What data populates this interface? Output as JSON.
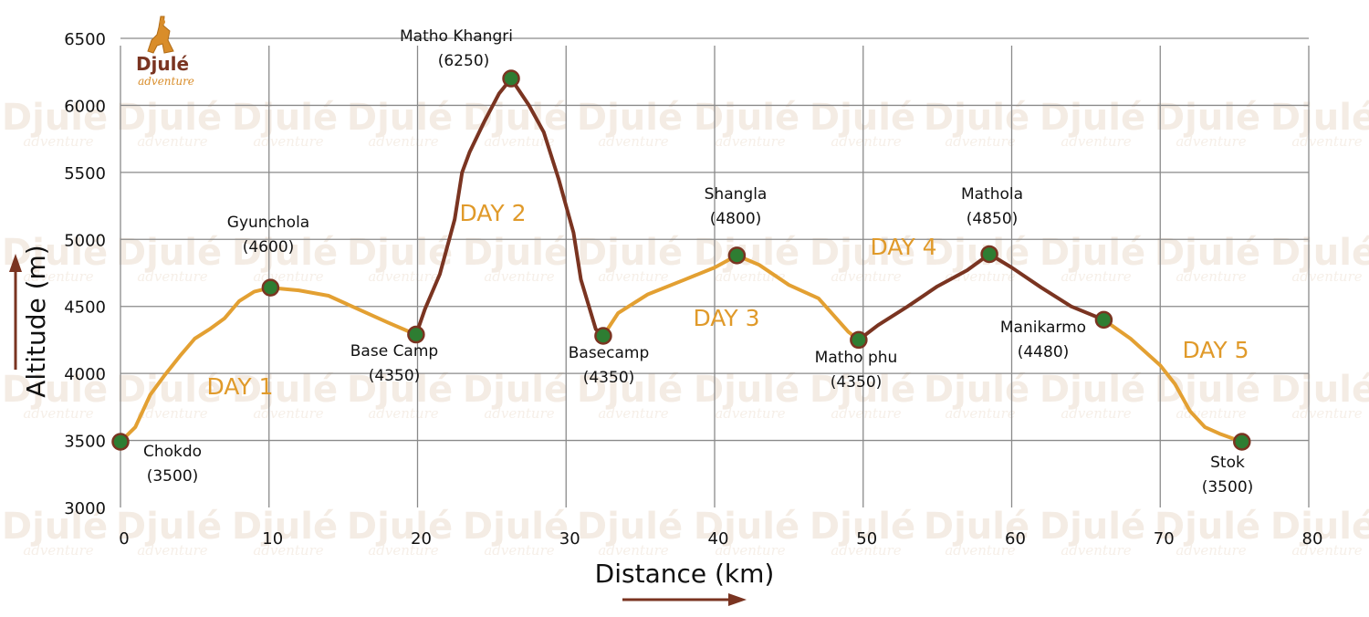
{
  "logo": {
    "name": "Djulé",
    "tagline": "adventure"
  },
  "colors": {
    "light_segment": "#e3a032",
    "dark_segment": "#7a3421",
    "marker_fill": "#2e7d32",
    "marker_stroke": "#7a3421",
    "day_label": "#e09a2a",
    "grid": "#8a8a8a",
    "arrow": "#7a3421",
    "watermark": "#f4ece4"
  },
  "chart_data": {
    "type": "line",
    "title": "",
    "xlabel": "Distance (km)",
    "ylabel": "Altitude (m)",
    "xlim": [
      0,
      80
    ],
    "ylim": [
      3000,
      6500
    ],
    "x_ticks": [
      0,
      10,
      20,
      30,
      40,
      50,
      60,
      70,
      80
    ],
    "y_ticks": [
      3000,
      3500,
      4000,
      4500,
      5000,
      5500,
      6000,
      6500
    ],
    "grid": true,
    "waypoints": [
      {
        "name": "Chokdo",
        "elevation_label": "(3500)",
        "x": 0,
        "y": 3490
      },
      {
        "name": "Gyunchola",
        "elevation_label": "(4600)",
        "x": 10.1,
        "y": 4640
      },
      {
        "name": "Base Camp",
        "elevation_label": "(4350)",
        "x": 19.9,
        "y": 4290
      },
      {
        "name": "Matho Khangri",
        "elevation_label": "(6250)",
        "x": 26.3,
        "y": 6200
      },
      {
        "name": "Basecamp",
        "elevation_label": "(4350)",
        "x": 32.5,
        "y": 4280
      },
      {
        "name": "Shangla",
        "elevation_label": "(4800)",
        "x": 41.5,
        "y": 4880
      },
      {
        "name": "Matho phu",
        "elevation_label": "(4350)",
        "x": 49.7,
        "y": 4250
      },
      {
        "name": "Mathola",
        "elevation_label": "(4850)",
        "x": 58.5,
        "y": 4890
      },
      {
        "name": "Manikarmo",
        "elevation_label": "(4480)",
        "x": 66.2,
        "y": 4400
      },
      {
        "name": "Stok",
        "elevation_label": "(3500)",
        "x": 75.5,
        "y": 3490
      }
    ],
    "day_labels": [
      "DAY 1",
      "DAY 2",
      "DAY 3",
      "DAY 4",
      "DAY 5"
    ],
    "series": [
      {
        "style": "light",
        "x": [
          0,
          1,
          2,
          3,
          4,
          5,
          6,
          7,
          8,
          9,
          10.1
        ],
        "y": [
          3490,
          3600,
          3840,
          3990,
          4130,
          4260,
          4330,
          4410,
          4540,
          4610,
          4640
        ]
      },
      {
        "style": "light",
        "x": [
          10.1,
          12,
          14,
          16,
          18,
          19.9
        ],
        "y": [
          4640,
          4620,
          4580,
          4480,
          4380,
          4290
        ]
      },
      {
        "style": "dark",
        "x": [
          19.9,
          20.5,
          21.5,
          22.5,
          23,
          23.5,
          24.5,
          25.5,
          26.3
        ],
        "y": [
          4290,
          4480,
          4740,
          5150,
          5500,
          5650,
          5880,
          6090,
          6200
        ]
      },
      {
        "style": "dark",
        "x": [
          26.3,
          27.5,
          28.5,
          29.5,
          30.5,
          31,
          32,
          32.5
        ],
        "y": [
          6200,
          6000,
          5800,
          5450,
          5050,
          4700,
          4330,
          4280
        ]
      },
      {
        "style": "light",
        "x": [
          32.5,
          33.5,
          35.5,
          38,
          40,
          41.5
        ],
        "y": [
          4280,
          4450,
          4590,
          4700,
          4790,
          4880
        ]
      },
      {
        "style": "light",
        "x": [
          41.5,
          43,
          45,
          47,
          49,
          49.7
        ],
        "y": [
          4880,
          4810,
          4660,
          4560,
          4310,
          4250
        ]
      },
      {
        "style": "dark",
        "x": [
          49.7,
          51,
          53,
          55,
          57,
          58.5
        ],
        "y": [
          4250,
          4360,
          4500,
          4650,
          4770,
          4890
        ]
      },
      {
        "style": "dark",
        "x": [
          58.5,
          60,
          62,
          64,
          66.2
        ],
        "y": [
          4890,
          4790,
          4640,
          4500,
          4400
        ]
      },
      {
        "style": "light",
        "x": [
          66.2,
          68,
          70,
          71,
          72,
          73,
          74,
          75.5
        ],
        "y": [
          4400,
          4260,
          4060,
          3920,
          3720,
          3600,
          3550,
          3490
        ]
      }
    ]
  }
}
